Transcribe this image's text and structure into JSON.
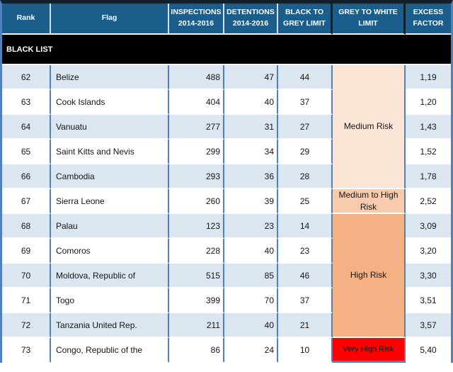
{
  "table": {
    "section_label": "BLACK LIST",
    "columns": [
      {
        "label": "Rank"
      },
      {
        "label": "Flag"
      },
      {
        "label": "INSPECTIONS\n2014-2016"
      },
      {
        "label": "DETENTIONS\n2014-2016"
      },
      {
        "label": "BLACK TO\nGREY LIMIT"
      },
      {
        "label": "GREY TO WHITE\nLIMIT"
      },
      {
        "label": "EXCESS\nFACTOR"
      }
    ],
    "rows": [
      {
        "rank": "62",
        "flag": "Belize",
        "inspections": "488",
        "detentions": "47",
        "black_to_grey": "44",
        "excess": "1,19"
      },
      {
        "rank": "63",
        "flag": "Cook Islands",
        "inspections": "404",
        "detentions": "40",
        "black_to_grey": "37",
        "excess": "1,20"
      },
      {
        "rank": "64",
        "flag": "Vanuatu",
        "inspections": "277",
        "detentions": "31",
        "black_to_grey": "27",
        "excess": "1,43"
      },
      {
        "rank": "65",
        "flag": "Saint Kitts and Nevis",
        "inspections": "299",
        "detentions": "34",
        "black_to_grey": "29",
        "excess": "1,52"
      },
      {
        "rank": "66",
        "flag": "Cambodia",
        "inspections": "293",
        "detentions": "36",
        "black_to_grey": "28",
        "excess": "1,78"
      },
      {
        "rank": "67",
        "flag": "Sierra Leone",
        "inspections": "260",
        "detentions": "39",
        "black_to_grey": "25",
        "excess": "2,52"
      },
      {
        "rank": "68",
        "flag": "Palau",
        "inspections": "123",
        "detentions": "23",
        "black_to_grey": "14",
        "excess": "3,09"
      },
      {
        "rank": "69",
        "flag": "Comoros",
        "inspections": "228",
        "detentions": "40",
        "black_to_grey": "23",
        "excess": "3,20"
      },
      {
        "rank": "70",
        "flag": "Moldova, Republic of",
        "inspections": "515",
        "detentions": "85",
        "black_to_grey": "46",
        "excess": "3,30"
      },
      {
        "rank": "71",
        "flag": "Togo",
        "inspections": "399",
        "detentions": "70",
        "black_to_grey": "37",
        "excess": "3,51"
      },
      {
        "rank": "72",
        "flag": "Tanzania United Rep.",
        "inspections": "211",
        "detentions": "40",
        "black_to_grey": "21",
        "excess": "3,57"
      },
      {
        "rank": "73",
        "flag": "Congo, Republic of the",
        "inspections": "86",
        "detentions": "24",
        "black_to_grey": "10",
        "excess": "5,40"
      }
    ],
    "risk_bands": [
      {
        "label": "Medium Risk",
        "rows": "62-66",
        "color": "#FBE5D6"
      },
      {
        "label": "Medium to High Risk",
        "rows": "67",
        "color": "#F8CBAD"
      },
      {
        "label": "High Risk",
        "rows": "68-72",
        "color": "#F4B183"
      },
      {
        "label": "Very High Risk",
        "rows": "73",
        "color": "#FF0000"
      }
    ],
    "colors": {
      "header_fill": "#1B5E8C",
      "header_text": "#FFFFFF",
      "section_fill": "#000000",
      "section_text": "#FFFFFF",
      "row_alt_fill": "#DCE6F1",
      "grid_blue": "#4F81BD",
      "outer_top_border": "#131F29"
    }
  }
}
